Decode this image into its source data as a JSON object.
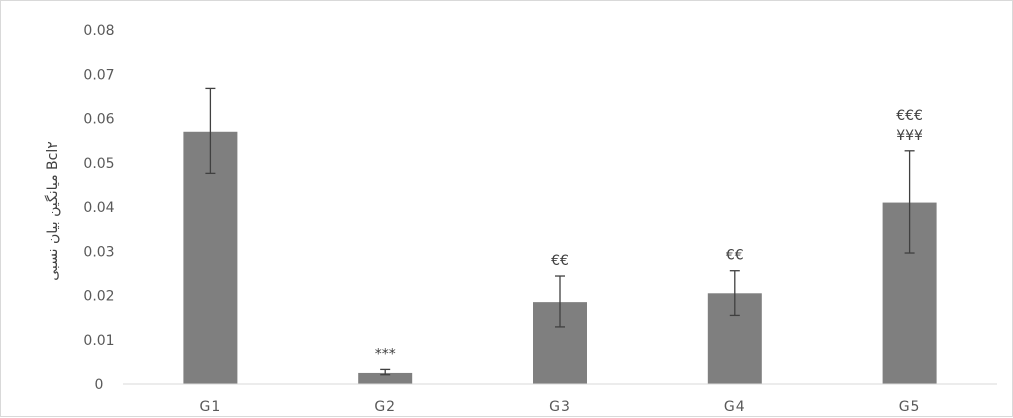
{
  "chart_data": {
    "type": "bar",
    "title": "",
    "xlabel": "",
    "ylabel": "میانگین بیان نسبی Bcl۲",
    "categories": [
      "G1",
      "G2",
      "G3",
      "G4",
      "G5"
    ],
    "values": [
      0.057,
      0.0025,
      0.0185,
      0.0205,
      0.041
    ],
    "error_bars": {
      "upper": [
        0.0668,
        0.0033,
        0.0244,
        0.0256,
        0.0527
      ],
      "lower": [
        0.0476,
        0.0021,
        0.0129,
        0.0155,
        0.0296
      ]
    },
    "annotations": [
      [],
      [
        "***"
      ],
      [
        "€€"
      ],
      [
        "€€"
      ],
      [
        "€€€",
        "¥¥¥"
      ]
    ],
    "y_ticks": [
      "0",
      "0.01",
      "0.02",
      "0.03",
      "0.04",
      "0.05",
      "0.06",
      "0.07",
      "0.08"
    ],
    "ylim": [
      0,
      0.08
    ],
    "grid": false,
    "legend": "none",
    "colors": {
      "bar": "#7f7f7f",
      "error_bar": "#404040",
      "axis": "#d9d9d9",
      "text": "#595959"
    }
  }
}
